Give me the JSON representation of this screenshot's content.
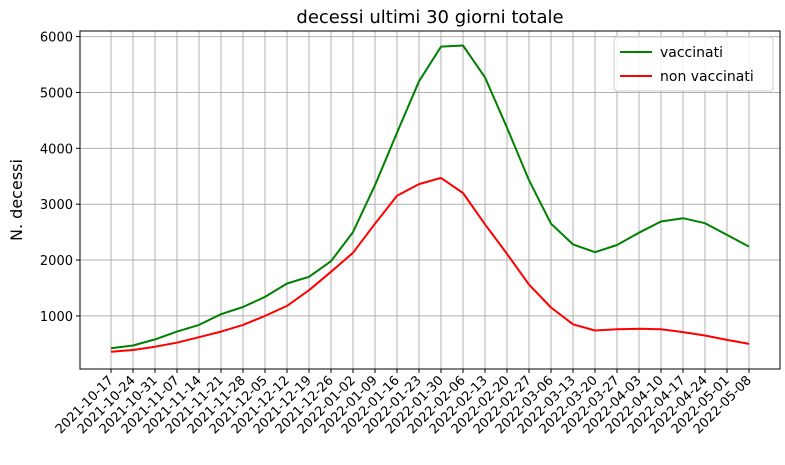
{
  "chart_data": {
    "type": "line",
    "title": "decessi ultimi 30 giorni totale",
    "xlabel": "",
    "ylabel": "N. decessi",
    "ylim": [
      50,
      6100
    ],
    "yticks": [
      1000,
      2000,
      3000,
      4000,
      5000,
      6000
    ],
    "grid": true,
    "legend_position": "top-right",
    "x": [
      "2021-10-17",
      "2021-10-24",
      "2021-10-31",
      "2021-11-07",
      "2021-11-14",
      "2021-11-21",
      "2021-11-28",
      "2021-12-05",
      "2021-12-12",
      "2021-12-19",
      "2021-12-26",
      "2022-01-02",
      "2022-01-09",
      "2022-01-16",
      "2022-01-23",
      "2022-01-30",
      "2022-02-06",
      "2022-02-13",
      "2022-02-20",
      "2022-02-27",
      "2022-03-06",
      "2022-03-13",
      "2022-03-20",
      "2022-03-27",
      "2022-04-03",
      "2022-04-10",
      "2022-04-17",
      "2022-04-24",
      "2022-05-01",
      "2022-05-08"
    ],
    "series": [
      {
        "name": "vaccinati",
        "color": "#008000",
        "values": [
          420,
          470,
          580,
          720,
          840,
          1030,
          1160,
          1340,
          1580,
          1700,
          1980,
          2500,
          3340,
          4280,
          5200,
          5820,
          5840,
          5270,
          4370,
          3430,
          2650,
          2280,
          2140,
          2270,
          2490,
          2690,
          2750,
          2660,
          2450,
          2240
        ]
      },
      {
        "name": "non vaccinati",
        "color": "#ff0000",
        "values": [
          360,
          390,
          450,
          520,
          620,
          720,
          840,
          1000,
          1180,
          1460,
          1790,
          2130,
          2650,
          3150,
          3360,
          3470,
          3200,
          2640,
          2110,
          1560,
          1150,
          850,
          740,
          760,
          770,
          760,
          710,
          650,
          570,
          500
        ]
      }
    ]
  }
}
